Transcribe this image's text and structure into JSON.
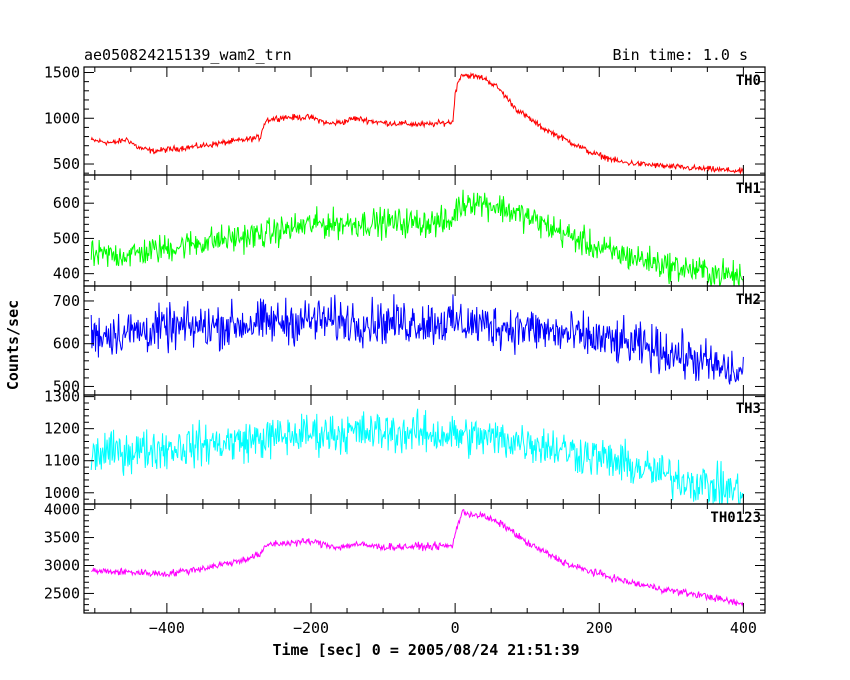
{
  "chart_data": {
    "type": "line",
    "title": "ae050824215139_wam2_trn",
    "bin_time_label": "Bin time: 1.0 s",
    "xlabel": "Time [sec] 0 = 2005/08/24 21:51:39",
    "ylabel": "Counts/sec",
    "xlim": [
      -515,
      430
    ],
    "xticks": [
      -400,
      -200,
      0,
      200,
      400
    ],
    "xtick_labels": [
      "−400",
      "−200",
      "0",
      "200",
      "400"
    ],
    "legend": "none",
    "panels": [
      {
        "name": "TH0",
        "color": "#ff0000",
        "ylim": [
          380,
          1560
        ],
        "yticks": [
          500,
          1000,
          1500
        ],
        "noise": 28,
        "profile": [
          [
            -505,
            760
          ],
          [
            -475,
            730
          ],
          [
            -455,
            770
          ],
          [
            -440,
            680
          ],
          [
            -420,
            640
          ],
          [
            -350,
            700
          ],
          [
            -270,
            790
          ],
          [
            -268,
            880
          ],
          [
            -262,
            980
          ],
          [
            -240,
            1010
          ],
          [
            -200,
            1010
          ],
          [
            -175,
            940
          ],
          [
            -155,
            960
          ],
          [
            -140,
            1000
          ],
          [
            -100,
            950
          ],
          [
            -40,
            930
          ],
          [
            -3,
            960
          ],
          [
            0,
            1280
          ],
          [
            8,
            1480
          ],
          [
            40,
            1440
          ],
          [
            60,
            1330
          ],
          [
            85,
            1100
          ],
          [
            120,
            900
          ],
          [
            150,
            780
          ],
          [
            190,
            620
          ],
          [
            230,
            520
          ],
          [
            300,
            470
          ],
          [
            400,
            420
          ]
        ]
      },
      {
        "name": "TH1",
        "color": "#00ff00",
        "ylim": [
          365,
          680
        ],
        "yticks": [
          400,
          500,
          600
        ],
        "noise": 35,
        "profile": [
          [
            -505,
            450
          ],
          [
            -450,
            455
          ],
          [
            -350,
            490
          ],
          [
            -270,
            510
          ],
          [
            -200,
            540
          ],
          [
            -100,
            545
          ],
          [
            -5,
            545
          ],
          [
            0,
            580
          ],
          [
            20,
            610
          ],
          [
            60,
            590
          ],
          [
            100,
            560
          ],
          [
            200,
            470
          ],
          [
            300,
            420
          ],
          [
            400,
            390
          ]
        ]
      },
      {
        "name": "TH2",
        "color": "#0000ff",
        "ylim": [
          480,
          735
        ],
        "yticks": [
          500,
          600,
          700
        ],
        "noise": 45,
        "profile": [
          [
            -505,
            620
          ],
          [
            -400,
            635
          ],
          [
            -300,
            645
          ],
          [
            -200,
            655
          ],
          [
            -100,
            650
          ],
          [
            0,
            650
          ],
          [
            100,
            635
          ],
          [
            200,
            610
          ],
          [
            300,
            580
          ],
          [
            400,
            525
          ]
        ]
      },
      {
        "name": "TH3",
        "color": "#00ffff",
        "ylim": [
          965,
          1305
        ],
        "yticks": [
          1000,
          1100,
          1200,
          1300
        ],
        "noise": 55,
        "profile": [
          [
            -505,
            1120
          ],
          [
            -400,
            1140
          ],
          [
            -300,
            1160
          ],
          [
            -200,
            1185
          ],
          [
            -100,
            1190
          ],
          [
            0,
            1180
          ],
          [
            100,
            1160
          ],
          [
            200,
            1110
          ],
          [
            300,
            1050
          ],
          [
            400,
            1000
          ]
        ]
      },
      {
        "name": "TH0123",
        "color": "#ff00ff",
        "ylim": [
          2150,
          4100
        ],
        "yticks": [
          2500,
          3000,
          3500,
          4000
        ],
        "noise": 55,
        "profile": [
          [
            -505,
            2900
          ],
          [
            -450,
            2880
          ],
          [
            -400,
            2850
          ],
          [
            -350,
            2950
          ],
          [
            -300,
            3080
          ],
          [
            -270,
            3200
          ],
          [
            -260,
            3380
          ],
          [
            -200,
            3430
          ],
          [
            -160,
            3320
          ],
          [
            -140,
            3380
          ],
          [
            -100,
            3330
          ],
          [
            -3,
            3350
          ],
          [
            0,
            3600
          ],
          [
            10,
            3950
          ],
          [
            40,
            3880
          ],
          [
            70,
            3700
          ],
          [
            100,
            3400
          ],
          [
            160,
            3000
          ],
          [
            200,
            2850
          ],
          [
            240,
            2700
          ],
          [
            300,
            2550
          ],
          [
            350,
            2450
          ],
          [
            400,
            2300
          ]
        ]
      }
    ]
  }
}
